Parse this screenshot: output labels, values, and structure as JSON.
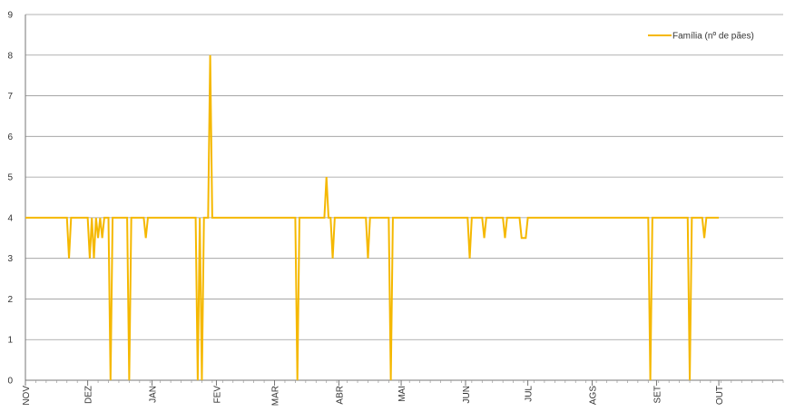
{
  "chart_data": {
    "type": "line",
    "ylim": [
      0,
      9
    ],
    "yticks": [
      0,
      1,
      2,
      3,
      4,
      5,
      6,
      7,
      8,
      9
    ],
    "grid": true,
    "legend_position": "top-right",
    "months": [
      "NOV",
      "DEZ",
      "JAN",
      "FEV",
      "MAR",
      "ABR",
      "MAI",
      "JUN",
      "JUL",
      "AGS",
      "SET",
      "OUT"
    ],
    "days_per_month": [
      30,
      31,
      31,
      28,
      31,
      30,
      31,
      30,
      31,
      31,
      30,
      31
    ],
    "series": [
      {
        "name": "Família (nº de pães)",
        "color": "#F5B800",
        "points": [
          [
            0,
            4
          ],
          [
            20,
            4
          ],
          [
            21,
            3
          ],
          [
            22,
            4
          ],
          [
            30,
            4
          ],
          [
            31,
            3
          ],
          [
            32,
            4
          ],
          [
            33,
            3
          ],
          [
            34,
            4
          ],
          [
            35,
            3.5
          ],
          [
            36,
            4
          ],
          [
            37,
            3.5
          ],
          [
            38,
            4
          ],
          [
            40,
            4
          ],
          [
            41,
            0
          ],
          [
            42,
            4
          ],
          [
            49,
            4
          ],
          [
            50,
            0
          ],
          [
            51,
            4
          ],
          [
            57,
            4
          ],
          [
            58,
            3.5
          ],
          [
            59,
            4
          ],
          [
            82,
            4
          ],
          [
            83,
            0
          ],
          [
            84,
            4
          ],
          [
            85,
            0
          ],
          [
            86,
            4
          ],
          [
            88,
            4
          ],
          [
            89,
            8
          ],
          [
            90,
            4
          ],
          [
            130,
            4
          ],
          [
            131,
            0
          ],
          [
            132,
            4
          ],
          [
            144,
            4
          ],
          [
            145,
            5
          ],
          [
            146,
            4
          ],
          [
            147,
            4
          ],
          [
            148,
            3
          ],
          [
            149,
            4
          ],
          [
            164,
            4
          ],
          [
            165,
            3
          ],
          [
            166,
            4
          ],
          [
            175,
            4
          ],
          [
            176,
            0
          ],
          [
            177,
            4
          ],
          [
            213,
            4
          ],
          [
            214,
            3
          ],
          [
            215,
            4
          ],
          [
            220,
            4
          ],
          [
            221,
            3.5
          ],
          [
            222,
            4
          ],
          [
            230,
            4
          ],
          [
            231,
            3.5
          ],
          [
            232,
            4
          ],
          [
            238,
            4
          ],
          [
            239,
            3.5
          ],
          [
            241,
            3.5
          ],
          [
            242,
            4
          ],
          [
            300,
            4
          ],
          [
            301,
            0
          ],
          [
            302,
            4
          ],
          [
            319,
            4
          ],
          [
            320,
            0
          ],
          [
            321,
            4
          ],
          [
            326,
            4
          ],
          [
            327,
            3.5
          ],
          [
            328,
            4
          ],
          [
            334,
            4
          ]
        ]
      }
    ]
  }
}
